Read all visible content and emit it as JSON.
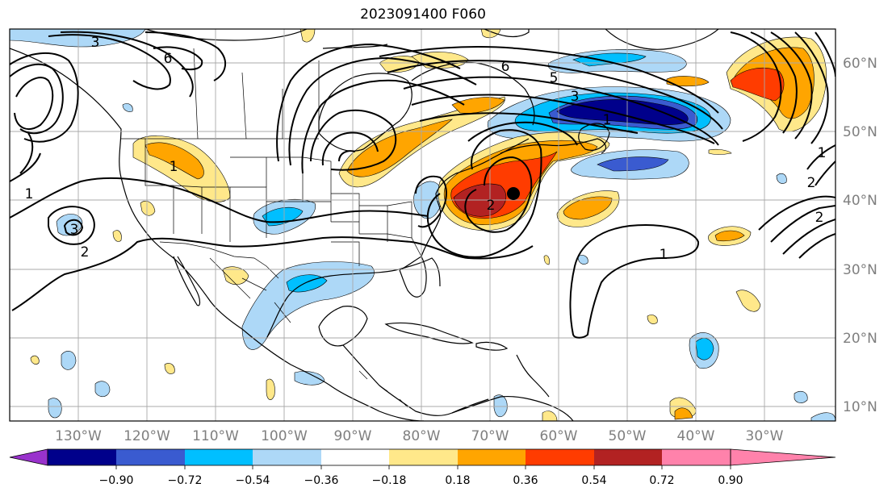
{
  "title": "2023091400 F060",
  "lon_labels": [
    "130°W",
    "120°W",
    "110°W",
    "100°W",
    "90°W",
    "80°W",
    "70°W",
    "60°W",
    "50°W",
    "40°W",
    "30°W"
  ],
  "lat_labels": [
    "60°N",
    "50°N",
    "40°N",
    "30°N",
    "20°N",
    "10°N"
  ],
  "colorbar": {
    "ticks": [
      "−0.90",
      "−0.72",
      "−0.54",
      "−0.36",
      "−0.18",
      "0.18",
      "0.36",
      "0.54",
      "0.72",
      "0.90"
    ],
    "colors": [
      "#9932cc",
      "#00008b",
      "#3a5bd0",
      "#00bfff",
      "#add8f7",
      "#ffffff",
      "#ffe88a",
      "#ffa500",
      "#ff3c00",
      "#b22222",
      "#ff82ab"
    ]
  },
  "contour_labels": [
    "1",
    "1",
    "1",
    "1",
    "2",
    "2",
    "2",
    "3",
    "3",
    "3",
    "5",
    "6",
    "6",
    "1",
    "2"
  ]
}
